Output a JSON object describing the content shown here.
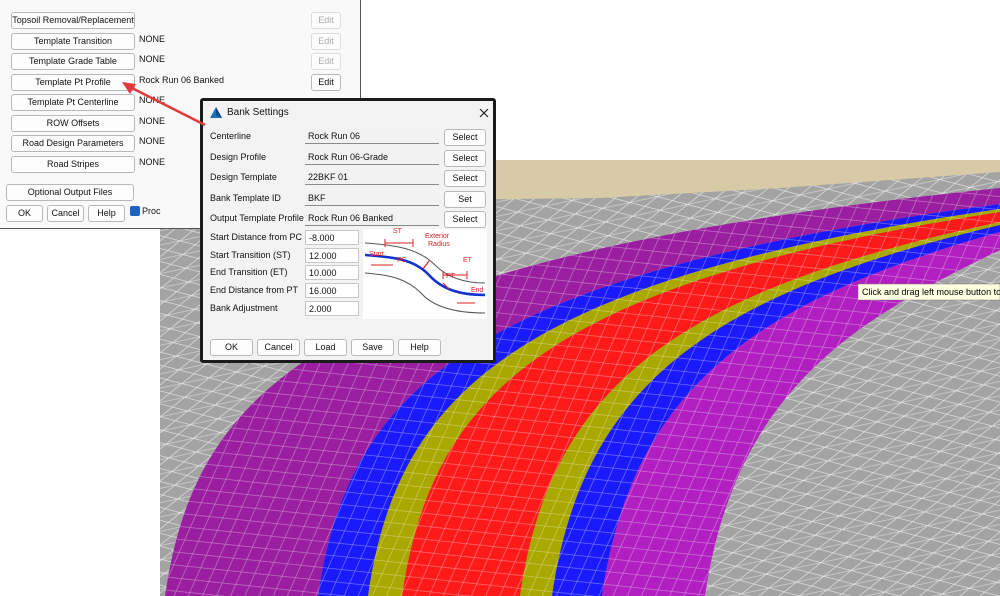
{
  "main_window": {
    "rows": [
      {
        "button": "Topsoil Removal/Replacement",
        "edit": "Edit",
        "edit_enabled": false
      },
      {
        "button": "Template Transition",
        "value": "NONE",
        "edit": "Edit",
        "edit_enabled": false
      },
      {
        "button": "Template Grade Table",
        "value": "NONE",
        "edit": "Edit",
        "edit_enabled": false
      },
      {
        "button": "Template Pt Profile",
        "value": "Rock Run 06 Banked",
        "edit": "Edit",
        "edit_enabled": true
      },
      {
        "button": "Template Pt Centerline",
        "value": "NONE"
      },
      {
        "button": "ROW Offsets",
        "value": "NONE"
      },
      {
        "button": "Road Design Parameters",
        "value": "NONE"
      },
      {
        "button": "Road Stripes",
        "value": "NONE"
      }
    ],
    "optional_output": "Optional Output Files",
    "footer_buttons": [
      "OK",
      "Cancel",
      "Help"
    ],
    "checkbox_label": "Proc"
  },
  "dialog": {
    "title": "Bank Settings",
    "selects": [
      {
        "label": "Centerline",
        "value": "Rock Run 06",
        "button": "Select"
      },
      {
        "label": "Design Profile",
        "value": "Rock Run 06-Grade",
        "button": "Select"
      },
      {
        "label": "Design Template",
        "value": "22BKF 01",
        "button": "Select"
      },
      {
        "label": "Bank Template ID",
        "value": "BKF",
        "button": "Set"
      },
      {
        "label": "Output Template Profile",
        "value": "Rock Run 06 Banked",
        "button": "Select"
      }
    ],
    "numbers": [
      {
        "label": "Start Distance from PC",
        "value": "-8.000"
      },
      {
        "label": "Start Transition (ST)",
        "value": "12.000"
      },
      {
        "label": "End Transition (ET)",
        "value": "10.000"
      },
      {
        "label": "End Distance from PT",
        "value": "16.000"
      },
      {
        "label": "Bank Adjustment",
        "value": "2.000"
      }
    ],
    "diagram_labels": {
      "st": "ST",
      "exterior": "Exterior",
      "radius": "Radius",
      "start": "Start",
      "pc": "PC",
      "pt": "PT",
      "et": "ET",
      "end": "End"
    },
    "buttons": [
      "OK",
      "Cancel",
      "Load",
      "Save",
      "Help"
    ]
  },
  "tooltip": "Click and drag left mouse button to"
}
